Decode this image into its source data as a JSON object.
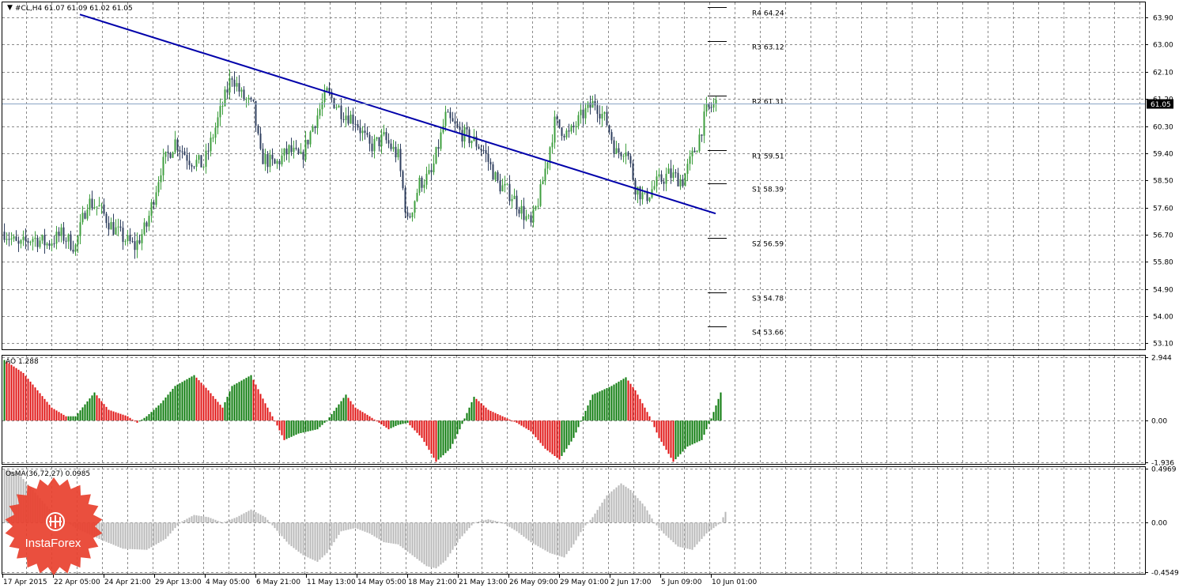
{
  "colors": {
    "bull": "#3f9f3f",
    "bear": "#2f3f5f",
    "trend": "#0000aa",
    "pivot": "#000000",
    "ao_up": "#0a7a0a",
    "ao_down": "#e01010",
    "osma": "#b8b8b8",
    "price_line": "#8aa4c4",
    "price_tag_bg": "#000000",
    "price_tag_text": "#ffffff",
    "logo_red": "#e8402e"
  },
  "logo": {
    "text": "InstaForex",
    "icon": "instaforex-logo-icon"
  },
  "chart_data": [
    {
      "type": "candlestick",
      "title": "#CL,H4  61.07 61.09 61.02 61.05",
      "current_price": "61.05",
      "ylim": [
        52.9,
        64.4
      ],
      "y_ticks": [
        "63.90",
        "63.00",
        "62.10",
        "61.20",
        "60.30",
        "59.40",
        "58.50",
        "57.60",
        "56.70",
        "55.80",
        "54.90",
        "54.00",
        "53.10"
      ],
      "x_ticks": [
        "17 Apr 2015",
        "22 Apr 05:00",
        "24 Apr 21:00",
        "29 Apr 13:00",
        "4 May 05:00",
        "6 May 21:00",
        "11 May 13:00",
        "14 May 05:00",
        "18 May 21:00",
        "21 May 13:00",
        "26 May 09:00",
        "29 May 01:00",
        "2 Jun 17:00",
        "5 Jun 09:00",
        "10 Jun 01:00"
      ],
      "anchors": [
        [
          0,
          56.8
        ],
        [
          6,
          56.3
        ],
        [
          12,
          56.6
        ],
        [
          18,
          56.4
        ],
        [
          24,
          56.7
        ],
        [
          30,
          56.3
        ],
        [
          35,
          57.8
        ],
        [
          40,
          57.6
        ],
        [
          45,
          57.0
        ],
        [
          50,
          56.6
        ],
        [
          55,
          56.3
        ],
        [
          60,
          57.0
        ],
        [
          66,
          58.9
        ],
        [
          72,
          59.8
        ],
        [
          78,
          59.2
        ],
        [
          84,
          59.0
        ],
        [
          90,
          60.5
        ],
        [
          96,
          62.0
        ],
        [
          100,
          61.3
        ],
        [
          105,
          60.9
        ],
        [
          108,
          59.3
        ],
        [
          114,
          59.0
        ],
        [
          120,
          59.5
        ],
        [
          125,
          59.2
        ],
        [
          130,
          60.3
        ],
        [
          136,
          61.4
        ],
        [
          142,
          60.8
        ],
        [
          148,
          60.5
        ],
        [
          154,
          59.6
        ],
        [
          160,
          59.9
        ],
        [
          166,
          59.3
        ],
        [
          170,
          57.1
        ],
        [
          175,
          58.4
        ],
        [
          180,
          58.7
        ],
        [
          186,
          60.6
        ],
        [
          192,
          60.1
        ],
        [
          198,
          59.8
        ],
        [
          202,
          59.5
        ],
        [
          208,
          58.4
        ],
        [
          214,
          58.0
        ],
        [
          218,
          57.5
        ],
        [
          222,
          57.0
        ],
        [
          226,
          58.1
        ],
        [
          232,
          60.4
        ],
        [
          238,
          60.0
        ],
        [
          244,
          60.7
        ],
        [
          249,
          61.1
        ],
        [
          254,
          60.4
        ],
        [
          258,
          59.4
        ],
        [
          262,
          59.6
        ],
        [
          266,
          58.3
        ],
        [
          270,
          57.9
        ],
        [
          275,
          58.4
        ],
        [
          280,
          58.7
        ],
        [
          286,
          58.5
        ],
        [
          292,
          59.7
        ],
        [
          296,
          60.8
        ],
        [
          300,
          61.05
        ]
      ],
      "pivots": [
        {
          "label": "R4",
          "value": 64.24,
          "text": "R4 64.24"
        },
        {
          "label": "R3",
          "value": 63.12,
          "text": "R3 63.12"
        },
        {
          "label": "R2",
          "value": 61.31,
          "text": "R2 61.31"
        },
        {
          "label": "R1",
          "value": 59.51,
          "text": "R1 59.51"
        },
        {
          "label": "S1",
          "value": 58.39,
          "text": "S1 58.39"
        },
        {
          "label": "S2",
          "value": 56.59,
          "text": "S2 56.59"
        },
        {
          "label": "S3",
          "value": 54.78,
          "text": "S3 54.78"
        },
        {
          "label": "S4",
          "value": 53.66,
          "text": "S4 53.66"
        }
      ],
      "trendline": {
        "from": [
          32,
          64.0
        ],
        "to": [
          300,
          57.4
        ]
      }
    },
    {
      "type": "bar",
      "title": "AO 1.288",
      "ylim": [
        -2.0,
        3.0
      ],
      "y_ticks": [
        "2.944",
        "0.00",
        "-1.936"
      ],
      "anchors": [
        [
          0,
          2.8
        ],
        [
          8,
          2.2
        ],
        [
          14,
          1.4
        ],
        [
          20,
          0.6
        ],
        [
          26,
          0.2
        ],
        [
          30,
          0.2
        ],
        [
          38,
          1.3
        ],
        [
          44,
          0.5
        ],
        [
          52,
          0.2
        ],
        [
          56,
          -0.1
        ],
        [
          60,
          0.2
        ],
        [
          66,
          0.8
        ],
        [
          72,
          1.6
        ],
        [
          80,
          2.1
        ],
        [
          86,
          1.4
        ],
        [
          92,
          0.6
        ],
        [
          96,
          1.6
        ],
        [
          104,
          2.1
        ],
        [
          110,
          0.8
        ],
        [
          114,
          0.0
        ],
        [
          118,
          -0.9
        ],
        [
          124,
          -0.6
        ],
        [
          132,
          -0.4
        ],
        [
          136,
          0.0
        ],
        [
          144,
          1.2
        ],
        [
          148,
          0.6
        ],
        [
          154,
          0.2
        ],
        [
          158,
          -0.1
        ],
        [
          162,
          -0.4
        ],
        [
          166,
          -0.2
        ],
        [
          170,
          -0.1
        ],
        [
          176,
          -0.8
        ],
        [
          182,
          -1.9
        ],
        [
          188,
          -1.3
        ],
        [
          192,
          -0.4
        ],
        [
          198,
          1.1
        ],
        [
          204,
          0.5
        ],
        [
          210,
          0.2
        ],
        [
          216,
          -0.1
        ],
        [
          222,
          -0.5
        ],
        [
          228,
          -1.3
        ],
        [
          234,
          -1.8
        ],
        [
          240,
          -0.8
        ],
        [
          244,
          0.2
        ],
        [
          248,
          1.2
        ],
        [
          256,
          1.6
        ],
        [
          262,
          2.0
        ],
        [
          266,
          1.4
        ],
        [
          272,
          0.2
        ],
        [
          276,
          -0.8
        ],
        [
          282,
          -1.9
        ],
        [
          288,
          -1.2
        ],
        [
          294,
          -0.9
        ],
        [
          298,
          0.1
        ],
        [
          302,
          1.3
        ]
      ]
    },
    {
      "type": "bar",
      "title": "OsMA(36,72,27) 0.0985",
      "ylim": [
        -0.47,
        0.51
      ],
      "y_ticks": [
        "0.4969",
        "0.00",
        "-0.4549"
      ],
      "anchors": [
        [
          0,
          0.49
        ],
        [
          6,
          0.45
        ],
        [
          12,
          0.3
        ],
        [
          20,
          0.1
        ],
        [
          30,
          -0.05
        ],
        [
          40,
          -0.15
        ],
        [
          50,
          -0.24
        ],
        [
          60,
          -0.25
        ],
        [
          68,
          -0.15
        ],
        [
          74,
          0.0
        ],
        [
          80,
          0.07
        ],
        [
          86,
          0.05
        ],
        [
          92,
          0.0
        ],
        [
          98,
          0.05
        ],
        [
          104,
          0.12
        ],
        [
          110,
          0.05
        ],
        [
          114,
          -0.05
        ],
        [
          120,
          -0.2
        ],
        [
          126,
          -0.3
        ],
        [
          132,
          -0.36
        ],
        [
          136,
          -0.28
        ],
        [
          142,
          -0.08
        ],
        [
          148,
          -0.05
        ],
        [
          154,
          -0.1
        ],
        [
          160,
          -0.18
        ],
        [
          166,
          -0.2
        ],
        [
          172,
          -0.3
        ],
        [
          178,
          -0.4
        ],
        [
          182,
          -0.42
        ],
        [
          186,
          -0.35
        ],
        [
          192,
          -0.15
        ],
        [
          198,
          0.0
        ],
        [
          204,
          0.03
        ],
        [
          210,
          0.0
        ],
        [
          216,
          -0.08
        ],
        [
          222,
          -0.18
        ],
        [
          230,
          -0.28
        ],
        [
          236,
          -0.32
        ],
        [
          240,
          -0.2
        ],
        [
          244,
          -0.05
        ],
        [
          248,
          0.05
        ],
        [
          254,
          0.25
        ],
        [
          260,
          0.36
        ],
        [
          264,
          0.3
        ],
        [
          270,
          0.15
        ],
        [
          274,
          0.0
        ],
        [
          278,
          -0.1
        ],
        [
          284,
          -0.22
        ],
        [
          290,
          -0.25
        ],
        [
          296,
          -0.1
        ],
        [
          302,
          0.0
        ],
        [
          304,
          0.0985
        ]
      ]
    }
  ]
}
